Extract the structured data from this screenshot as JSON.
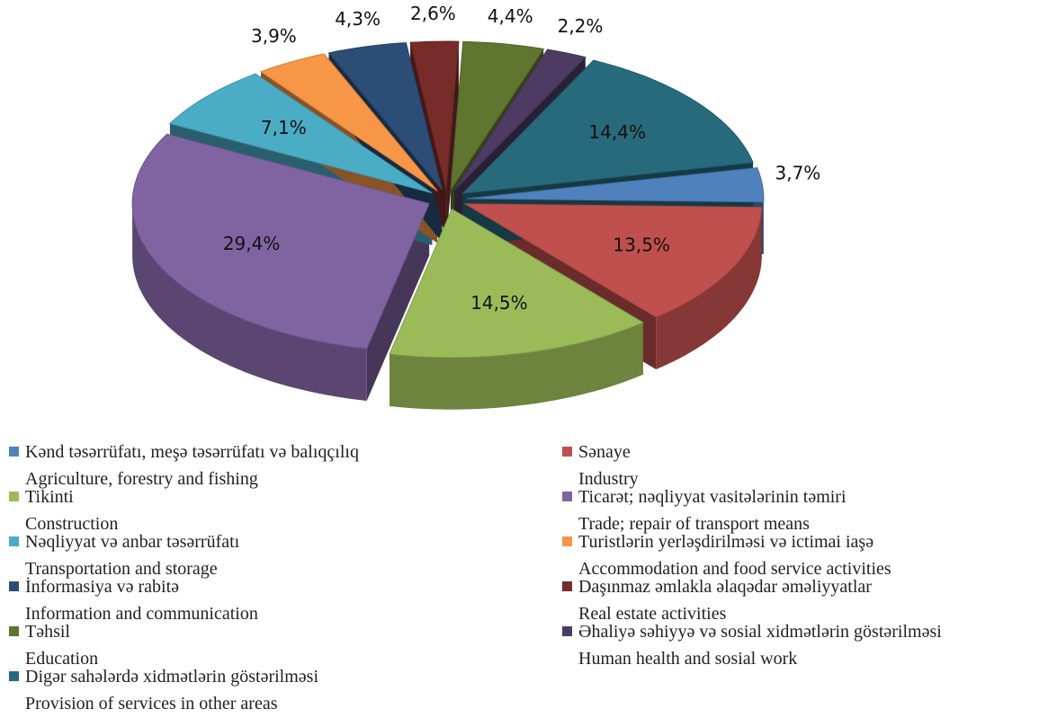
{
  "chart_data": {
    "type": "pie",
    "categories": [
      "Kənd təsərrüfatı, meşə təsərrüfatı və balıqçılıq",
      "Sənaye",
      "Tikinti",
      "Ticarət; nəqliyyat vasitələrinin təmiri",
      "Nəqliyyat və anbar təsərrüfatı",
      "Turistlərin yerləşdirilməsi və ictimai iaşə",
      "İnformasiya və rabitə",
      "Daşınmaz əmlakla əlaqədar əməliyyatlar",
      "Təhsil",
      "Əhaliyə səhiyyə və sosial xidmətlərin göstərilməsi",
      "Digər sahələrdə xidmətlərin göstərilməsi"
    ],
    "categories_en": [
      "Agriculture, forestry and fishing",
      "Industry",
      "Construction",
      "Trade; repair of transport means",
      "Transportation and storage",
      "Accommodation and food service activities",
      "Information and communication",
      "Real estate activities",
      "Education",
      "Human health and sosial work",
      "Provision of services in other areas"
    ],
    "values": [
      3.7,
      13.5,
      14.5,
      29.4,
      7.1,
      3.9,
      4.3,
      2.6,
      4.4,
      2.2,
      14.4
    ],
    "value_labels": [
      "3,7%",
      "13,5%",
      "14,5%",
      "29,4%",
      "7,1%",
      "3,9%",
      "4,3%",
      "2,6%",
      "4,4%",
      "2,2%",
      "14,4%"
    ],
    "colors": [
      "#4f81bd",
      "#c0504d",
      "#9bbb59",
      "#8064a2",
      "#4bacc6",
      "#f79646",
      "#2c4d75",
      "#772c2a",
      "#5f7530",
      "#4d3b62",
      "#276a7c"
    ]
  }
}
